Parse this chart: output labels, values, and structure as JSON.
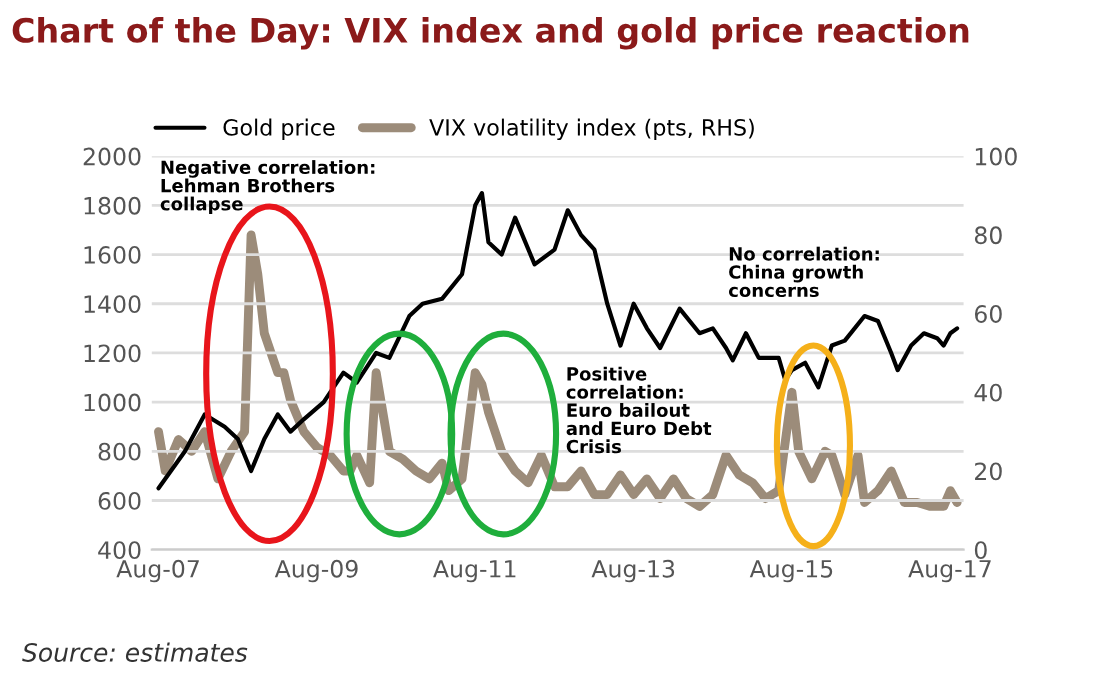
{
  "chart_data": {
    "type": "line",
    "title": "Chart of the Day: VIX index and gold price reaction",
    "xlim": [
      "2007-07",
      "2017-10"
    ],
    "xticks": [
      {
        "value": "2007-08",
        "label": "Aug-07"
      },
      {
        "value": "2009-08",
        "label": "Aug-09"
      },
      {
        "value": "2011-08",
        "label": "Aug-11"
      },
      {
        "value": "2013-08",
        "label": "Aug-13"
      },
      {
        "value": "2015-08",
        "label": "Aug-15"
      },
      {
        "value": "2017-08",
        "label": "Aug-17"
      }
    ],
    "ylim": [
      400,
      2000
    ],
    "yticks": [
      400,
      600,
      800,
      1000,
      1200,
      1400,
      1600,
      1800,
      2000
    ],
    "y2lim": [
      0,
      100
    ],
    "y2ticks": [
      0,
      20,
      40,
      60,
      80,
      100
    ],
    "grid": "y",
    "legend": "top",
    "series": [
      {
        "name": "Gold price",
        "color": "#000000",
        "x": [
          "2007-08",
          "2007-12",
          "2008-03",
          "2008-06",
          "2008-08",
          "2008-10",
          "2008-12",
          "2009-02",
          "2009-04",
          "2009-06",
          "2009-09",
          "2009-12",
          "2010-02",
          "2010-05",
          "2010-07",
          "2010-10",
          "2010-12",
          "2011-03",
          "2011-06",
          "2011-08",
          "2011-09",
          "2011-10",
          "2011-12",
          "2012-02",
          "2012-05",
          "2012-08",
          "2012-10",
          "2012-12",
          "2013-02",
          "2013-04",
          "2013-06",
          "2013-08",
          "2013-10",
          "2013-12",
          "2014-03",
          "2014-06",
          "2014-08",
          "2014-10",
          "2014-11",
          "2015-01",
          "2015-03",
          "2015-06",
          "2015-07",
          "2015-08",
          "2015-10",
          "2015-12",
          "2016-02",
          "2016-04",
          "2016-07",
          "2016-09",
          "2016-11",
          "2016-12",
          "2017-02",
          "2017-04",
          "2017-06",
          "2017-07",
          "2017-08",
          "2017-09"
        ],
        "values": [
          650,
          800,
          950,
          900,
          850,
          720,
          850,
          950,
          880,
          930,
          1000,
          1120,
          1080,
          1200,
          1180,
          1350,
          1400,
          1420,
          1520,
          1800,
          1850,
          1650,
          1600,
          1750,
          1560,
          1620,
          1780,
          1680,
          1620,
          1400,
          1230,
          1400,
          1300,
          1220,
          1380,
          1280,
          1300,
          1220,
          1170,
          1280,
          1180,
          1180,
          1090,
          1130,
          1160,
          1060,
          1230,
          1250,
          1350,
          1330,
          1200,
          1130,
          1230,
          1280,
          1260,
          1230,
          1280,
          1300
        ]
      },
      {
        "name": "VIX volatility index (pts, RHS)",
        "color": "#9c8c7a",
        "axis": "y2",
        "x": [
          "2007-08",
          "2007-09",
          "2007-11",
          "2008-01",
          "2008-03",
          "2008-05",
          "2008-07",
          "2008-09",
          "2008-10",
          "2008-11",
          "2008-12",
          "2009-02",
          "2009-03",
          "2009-04",
          "2009-06",
          "2009-08",
          "2009-10",
          "2009-12",
          "2010-01",
          "2010-02",
          "2010-04",
          "2010-05",
          "2010-07",
          "2010-09",
          "2010-11",
          "2011-01",
          "2011-03",
          "2011-04",
          "2011-06",
          "2011-08",
          "2011-09",
          "2011-10",
          "2011-12",
          "2012-02",
          "2012-04",
          "2012-06",
          "2012-08",
          "2012-10",
          "2012-12",
          "2013-02",
          "2013-04",
          "2013-06",
          "2013-08",
          "2013-10",
          "2013-12",
          "2014-02",
          "2014-04",
          "2014-06",
          "2014-08",
          "2014-10",
          "2014-12",
          "2015-02",
          "2015-04",
          "2015-06",
          "2015-08",
          "2015-09",
          "2015-11",
          "2016-01",
          "2016-02",
          "2016-04",
          "2016-06",
          "2016-07",
          "2016-09",
          "2016-11",
          "2017-01",
          "2017-03",
          "2017-05",
          "2017-07",
          "2017-08",
          "2017-09"
        ],
        "values": [
          30,
          20,
          28,
          25,
          30,
          18,
          25,
          30,
          80,
          70,
          55,
          45,
          45,
          38,
          30,
          26,
          24,
          20,
          20,
          24,
          17,
          45,
          25,
          23,
          20,
          18,
          22,
          15,
          18,
          45,
          42,
          35,
          25,
          20,
          17,
          24,
          16,
          16,
          20,
          14,
          14,
          19,
          14,
          18,
          13,
          18,
          13,
          11,
          14,
          24,
          19,
          17,
          13,
          15,
          40,
          25,
          18,
          25,
          24,
          14,
          24,
          12,
          15,
          20,
          12,
          12,
          11,
          11,
          15,
          12
        ]
      }
    ],
    "annotations": [
      "Negative correlation:\nLehman Brothers\ncollapse",
      "Positive\ncorrelation:\nEuro bailout\nand Euro Debt\nCrisis",
      "No correlation:\nChina growth\nconcerns",
      "Source: estimates"
    ]
  }
}
